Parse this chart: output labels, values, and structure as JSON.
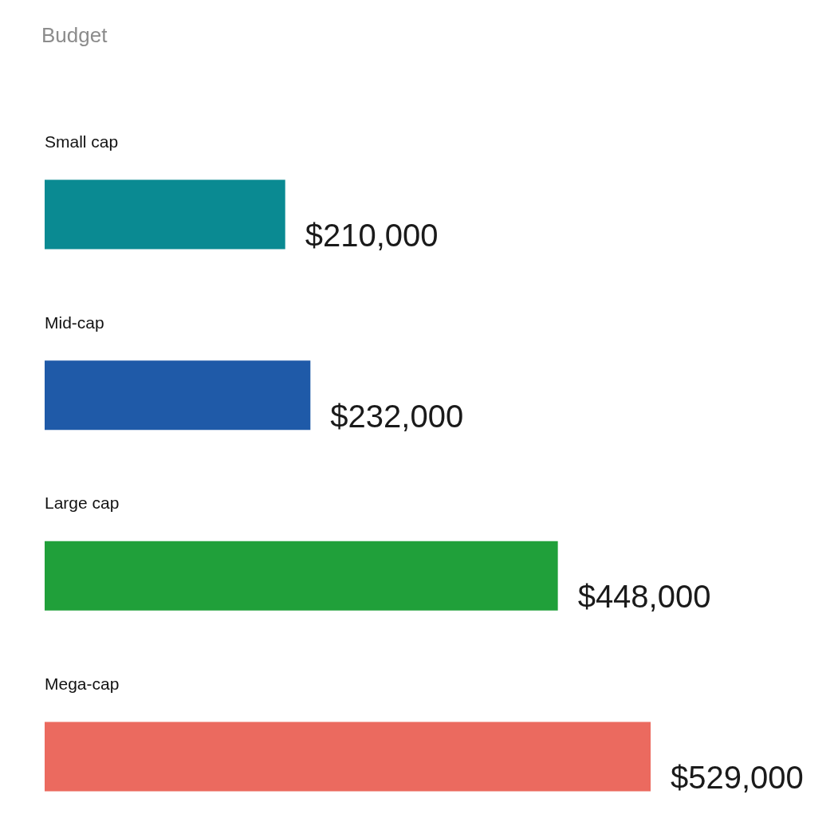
{
  "chart_data": {
    "type": "bar",
    "orientation": "horizontal",
    "title": "Budget",
    "categories": [
      "Small cap",
      "Mid-cap",
      "Large cap",
      "Mega-cap"
    ],
    "values": [
      210000,
      232000,
      448000,
      529000
    ],
    "colors": [
      "#0a8a92",
      "#1f5aa8",
      "#20a03a",
      "#eb6a5f"
    ],
    "value_labels": [
      "$210,000",
      "$232,000",
      "$448,000",
      "$529,000"
    ],
    "tick_labels": "y"
  }
}
